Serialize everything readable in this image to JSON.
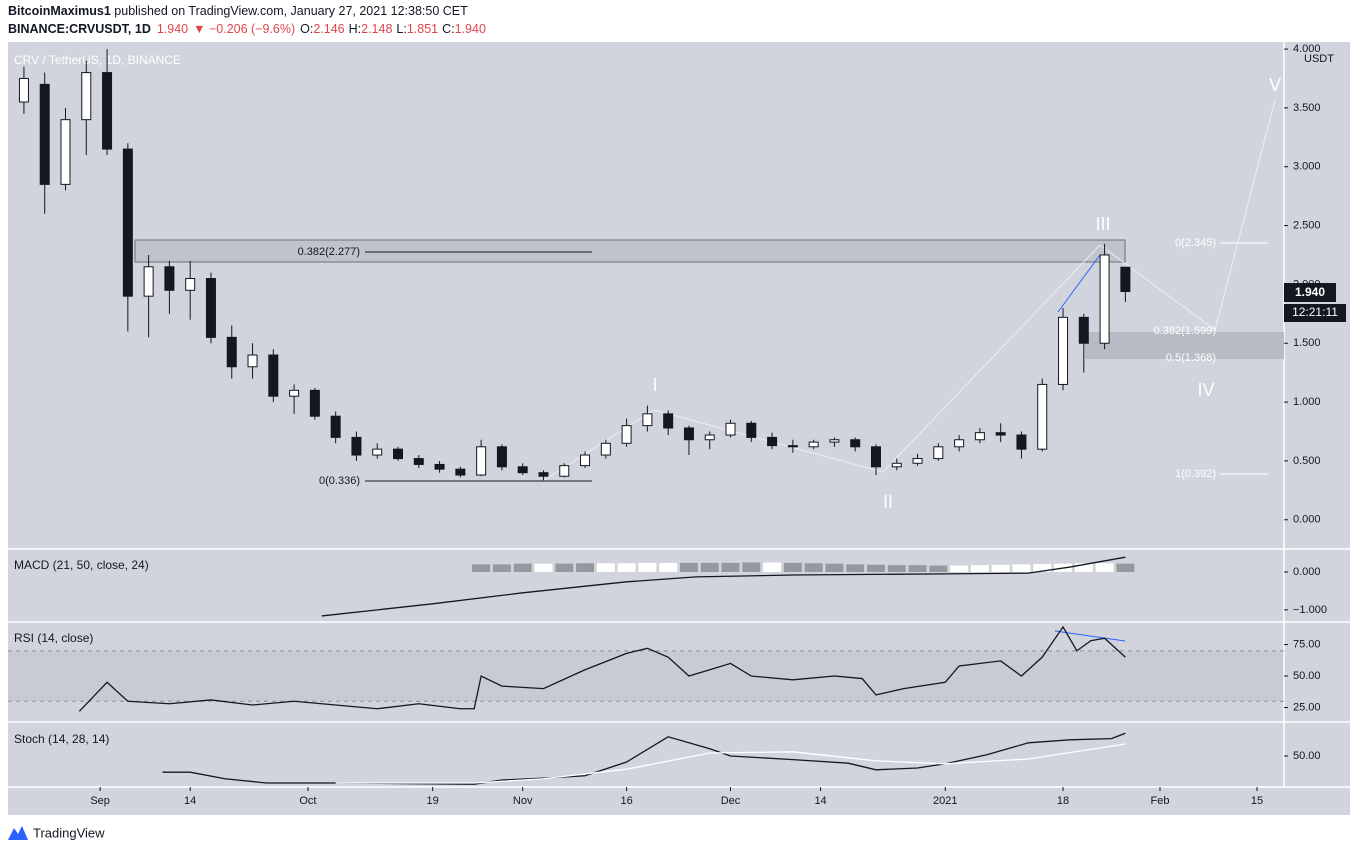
{
  "header": {
    "user": "BitcoinMaximus1",
    "published": " published on TradingView.com, January 27, 2021 12:38:50 CET",
    "symbol": "BINANCE:CRVUSDT, 1D",
    "last": "1.940",
    "change": "▼ −0.206 (−9.6%)",
    "ohlc": [
      {
        "label": "O:",
        "value": "2.146"
      },
      {
        "label": "H:",
        "value": "2.148"
      },
      {
        "label": "L:",
        "value": "1.851"
      },
      {
        "label": "C:",
        "value": "1.940"
      }
    ]
  },
  "price_tag": "1.940",
  "countdown": "12:21:11",
  "currency": "USDT",
  "footer": "TradingView",
  "chart_data": [
    {
      "type": "candlestick",
      "title": "CRV / TetherUS, 1D, BINANCE",
      "x": [
        -11,
        -8,
        -5,
        -2,
        1,
        4,
        7,
        10,
        13,
        16,
        19,
        22,
        25,
        28,
        31,
        34,
        37,
        40,
        43,
        46,
        49,
        52,
        55,
        58,
        61,
        64,
        67,
        70,
        73,
        76,
        79,
        82,
        85,
        88,
        91,
        94,
        97,
        100,
        103,
        106,
        109,
        112,
        115,
        118,
        121,
        124,
        127,
        130,
        133,
        136,
        139,
        142,
        145,
        148
      ],
      "open": [
        3.55,
        3.7,
        2.85,
        3.4,
        3.8,
        3.15,
        1.9,
        2.15,
        1.95,
        2.05,
        1.55,
        1.3,
        1.4,
        1.05,
        1.1,
        0.88,
        0.7,
        0.55,
        0.6,
        0.52,
        0.47,
        0.43,
        0.38,
        0.62,
        0.45,
        0.4,
        0.37,
        0.46,
        0.55,
        0.65,
        0.8,
        0.9,
        0.78,
        0.68,
        0.72,
        0.82,
        0.7,
        0.63,
        0.62,
        0.66,
        0.68,
        0.62,
        0.45,
        0.48,
        0.52,
        0.62,
        0.68,
        0.74,
        0.72,
        0.6,
        1.15,
        1.72,
        1.5,
        2.146
      ],
      "high": [
        3.85,
        3.8,
        3.5,
        3.9,
        4.0,
        3.2,
        2.25,
        2.2,
        2.2,
        2.1,
        1.65,
        1.5,
        1.45,
        1.15,
        1.12,
        0.92,
        0.75,
        0.65,
        0.62,
        0.55,
        0.5,
        0.45,
        0.68,
        0.64,
        0.48,
        0.42,
        0.48,
        0.58,
        0.68,
        0.86,
        0.97,
        0.93,
        0.8,
        0.75,
        0.85,
        0.84,
        0.74,
        0.68,
        0.68,
        0.7,
        0.7,
        0.64,
        0.52,
        0.56,
        0.65,
        0.72,
        0.78,
        0.82,
        0.75,
        1.2,
        1.8,
        1.75,
        2.345,
        2.148
      ],
      "low": [
        3.45,
        2.6,
        2.8,
        3.1,
        3.1,
        1.6,
        1.55,
        1.75,
        1.7,
        1.5,
        1.2,
        1.2,
        1.0,
        0.9,
        0.85,
        0.65,
        0.5,
        0.52,
        0.5,
        0.44,
        0.4,
        0.36,
        0.37,
        0.42,
        0.38,
        0.336,
        0.36,
        0.44,
        0.52,
        0.62,
        0.75,
        0.72,
        0.55,
        0.6,
        0.7,
        0.66,
        0.6,
        0.57,
        0.6,
        0.62,
        0.58,
        0.38,
        0.42,
        0.46,
        0.5,
        0.58,
        0.65,
        0.66,
        0.52,
        0.58,
        1.1,
        1.25,
        1.45,
        1.851
      ],
      "close": [
        3.75,
        2.85,
        3.4,
        3.8,
        3.15,
        1.9,
        2.15,
        1.95,
        2.05,
        1.55,
        1.3,
        1.4,
        1.05,
        1.1,
        0.88,
        0.7,
        0.55,
        0.6,
        0.52,
        0.47,
        0.43,
        0.38,
        0.62,
        0.45,
        0.4,
        0.37,
        0.46,
        0.55,
        0.65,
        0.8,
        0.9,
        0.78,
        0.68,
        0.72,
        0.82,
        0.7,
        0.63,
        0.62,
        0.66,
        0.68,
        0.62,
        0.45,
        0.48,
        0.52,
        0.62,
        0.68,
        0.74,
        0.72,
        0.6,
        1.15,
        1.72,
        1.5,
        2.25,
        1.94
      ],
      "up_color": "#ffffff",
      "down_color": "#131722",
      "xlim": [
        -13.3,
        170.9
      ],
      "xticks": [
        {
          "value": 0,
          "label": "Sep"
        },
        {
          "value": 13,
          "label": "14"
        },
        {
          "value": 30,
          "label": "Oct"
        },
        {
          "value": 48,
          "label": "19"
        },
        {
          "value": 61,
          "label": "Nov"
        },
        {
          "value": 76,
          "label": "16"
        },
        {
          "value": 91,
          "label": "Dec"
        },
        {
          "value": 104,
          "label": "14"
        },
        {
          "value": 122,
          "label": "2021"
        },
        {
          "value": 139,
          "label": "18"
        },
        {
          "value": 153,
          "label": "Feb"
        },
        {
          "value": 167,
          "label": "15"
        }
      ],
      "ylim": [
        -0.24,
        4.06
      ],
      "yticks": [
        {
          "value": 0,
          "label": "0.000"
        },
        {
          "value": 0.5,
          "label": "0.500"
        },
        {
          "value": 1,
          "label": "1.000"
        },
        {
          "value": 1.5,
          "label": "1.500"
        },
        {
          "value": 2,
          "label": "2.000"
        },
        {
          "value": 2.5,
          "label": "2.500"
        },
        {
          "value": 3,
          "label": "3.000"
        },
        {
          "value": 3.5,
          "label": "3.500"
        },
        {
          "value": 4,
          "label": "4.000"
        }
      ],
      "grid": false,
      "annotations": [
        "0.382(2.277)",
        "0(0.336)",
        "0(2.345)",
        "0.382(1.599)",
        "0.5(1.368)",
        "1(0.392)",
        "I",
        "II",
        "III",
        "IV",
        "V"
      ]
    },
    {
      "type": "macd",
      "title": "MACD (21, 50, close, 24)",
      "x": [
        32,
        48,
        61,
        76,
        86,
        100,
        122,
        134,
        140,
        148
      ],
      "values": [
        -1.16,
        -0.84,
        -0.55,
        -0.26,
        -0.13,
        -0.08,
        -0.05,
        -0.03,
        0.13,
        0.39
      ],
      "color": "#131722",
      "histogram": {
        "x": [
          55,
          58,
          61,
          64,
          67,
          70,
          73,
          76,
          79,
          82,
          85,
          88,
          91,
          94,
          97,
          100,
          103,
          106,
          109,
          112,
          115,
          118,
          121,
          124,
          127,
          130,
          133,
          136,
          139,
          142,
          145,
          148
        ],
        "values": [
          0.2,
          0.2,
          0.22,
          0.22,
          0.22,
          0.23,
          0.23,
          0.23,
          0.24,
          0.24,
          0.24,
          0.24,
          0.24,
          0.25,
          0.25,
          0.24,
          0.23,
          0.22,
          0.2,
          0.19,
          0.18,
          0.18,
          0.17,
          0.17,
          0.18,
          0.19,
          0.2,
          0.21,
          0.22,
          0.23,
          0.23,
          0.22
        ],
        "colors": [
          "#9598a1",
          "#9598a1",
          "#9598a1",
          "#ffffff",
          "#9598a1",
          "#9598a1",
          "#ffffff",
          "#ffffff",
          "#ffffff",
          "#ffffff",
          "#9598a1",
          "#9598a1",
          "#9598a1",
          "#9598a1",
          "#ffffff",
          "#9598a1",
          "#9598a1",
          "#9598a1",
          "#9598a1",
          "#9598a1",
          "#9598a1",
          "#9598a1",
          "#9598a1",
          "#ffffff",
          "#ffffff",
          "#ffffff",
          "#ffffff",
          "#ffffff",
          "#ffffff",
          "#ffffff",
          "#ffffff",
          "#9598a1"
        ]
      },
      "ylim": [
        -1.32,
        0.58
      ],
      "yticks": [
        {
          "value": 0,
          "label": "0.000"
        },
        {
          "value": -1,
          "label": "−1.000"
        }
      ]
    },
    {
      "type": "line",
      "title": "RSI (14, close)",
      "series": [
        {
          "color": "#131722",
          "x": [
            -3,
            1,
            4,
            10,
            16,
            22,
            28,
            34,
            40,
            46,
            52,
            54,
            55,
            58,
            64,
            70,
            76,
            79,
            82,
            85,
            88,
            91,
            94,
            100,
            106,
            110,
            112,
            116,
            122,
            124,
            130,
            133,
            136,
            139,
            141,
            143,
            145,
            147,
            148
          ],
          "values": [
            22,
            45,
            30,
            28,
            31,
            27,
            30,
            27,
            24,
            28,
            24,
            24,
            50,
            42,
            40,
            55,
            68,
            72,
            65,
            50,
            55,
            60,
            50,
            47,
            50,
            48,
            35,
            40,
            45,
            58,
            62,
            50,
            65,
            89,
            70,
            78,
            80,
            70,
            65
          ]
        }
      ],
      "bands": [
        30,
        70
      ],
      "ylim": [
        13.5,
        92.9
      ],
      "yticks": [
        {
          "value": 25,
          "label": "25.00"
        },
        {
          "value": 50,
          "label": "50.00"
        },
        {
          "value": 75,
          "label": "75.00"
        }
      ]
    },
    {
      "type": "line",
      "title": "Stoch (14, 28, 14)",
      "series": [
        {
          "color": "#131722",
          "x": [
            9,
            13,
            18,
            24,
            34,
            44,
            54,
            58,
            64,
            70,
            76,
            82,
            88,
            91,
            100,
            108,
            112,
            118,
            122,
            128,
            134,
            140,
            146,
            148
          ],
          "values": [
            23,
            23,
            12,
            5,
            5,
            4,
            3,
            10,
            13,
            17,
            40,
            82,
            62,
            50,
            44,
            38,
            27,
            30,
            37,
            52,
            72,
            77,
            79,
            88
          ]
        },
        {
          "color": "#ffffff",
          "x": [
            34,
            54,
            64,
            76,
            88,
            100,
            112,
            122,
            134,
            148
          ],
          "values": [
            5,
            5,
            12,
            28,
            55,
            57,
            42,
            37,
            45,
            70
          ]
        }
      ],
      "ylim": [
        -1.7,
        106.7
      ],
      "yticks": [
        {
          "value": 50,
          "label": "50.00"
        }
      ]
    }
  ]
}
